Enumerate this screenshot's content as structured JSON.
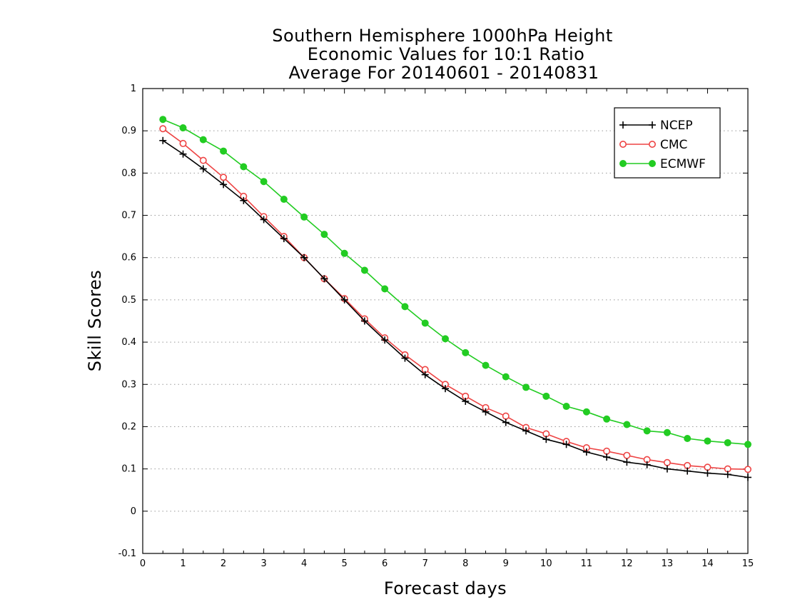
{
  "chart_data": {
    "type": "line",
    "title": [
      "Southern Hemisphere 1000hPa Height",
      "Economic Values for 10:1 Ratio",
      "Average For 20140601 - 20140831"
    ],
    "xlabel": "Forecast days",
    "ylabel": "Skill Scores",
    "xlim": [
      0,
      15
    ],
    "ylim": [
      -0.1,
      1
    ],
    "xticks": [
      0,
      1,
      2,
      3,
      4,
      5,
      6,
      7,
      8,
      9,
      10,
      11,
      12,
      13,
      14,
      15
    ],
    "yticks": [
      -0.1,
      0,
      0.1,
      0.2,
      0.3,
      0.4,
      0.5,
      0.6,
      0.7,
      0.8,
      0.9,
      1
    ],
    "ytick_labels": [
      "-0.1",
      "0",
      "0.1",
      "0.2",
      "0.3",
      "0.4",
      "0.5",
      "0.6",
      "0.7",
      "0.8",
      "0.9",
      "1"
    ],
    "grid": "horizontal dotted",
    "legend_position": "top-right",
    "x": [
      0.5,
      1,
      1.5,
      2,
      2.5,
      3,
      3.5,
      4,
      4.5,
      5,
      5.5,
      6,
      6.5,
      7,
      7.5,
      8,
      8.5,
      9,
      9.5,
      10,
      10.5,
      11,
      11.5,
      12,
      12.5,
      13,
      13.5,
      14,
      14.5,
      15
    ],
    "series": [
      {
        "name": "NCEP",
        "color": "#000000",
        "marker": "plus",
        "values": [
          0.877,
          0.845,
          0.81,
          0.773,
          0.735,
          0.69,
          0.645,
          0.6,
          0.55,
          0.5,
          0.45,
          0.405,
          0.362,
          0.323,
          0.29,
          0.26,
          0.235,
          0.21,
          0.19,
          0.17,
          0.158,
          0.14,
          0.128,
          0.116,
          0.11,
          0.1,
          0.095,
          0.09,
          0.087,
          0.08
        ]
      },
      {
        "name": "CMC",
        "color": "#ee4444",
        "marker": "open-circle",
        "values": [
          0.905,
          0.87,
          0.83,
          0.79,
          0.745,
          0.697,
          0.65,
          0.6,
          0.55,
          0.503,
          0.455,
          0.41,
          0.37,
          0.335,
          0.3,
          0.272,
          0.245,
          0.225,
          0.198,
          0.183,
          0.165,
          0.15,
          0.142,
          0.132,
          0.122,
          0.115,
          0.108,
          0.104,
          0.1,
          0.099
        ]
      },
      {
        "name": "ECMWF",
        "color": "#22cc22",
        "marker": "filled-circle",
        "values": [
          0.927,
          0.907,
          0.879,
          0.852,
          0.815,
          0.78,
          0.738,
          0.696,
          0.655,
          0.61,
          0.57,
          0.526,
          0.484,
          0.445,
          0.408,
          0.375,
          0.345,
          0.318,
          0.293,
          0.272,
          0.248,
          0.235,
          0.218,
          0.205,
          0.19,
          0.186,
          0.172,
          0.166,
          0.162,
          0.158
        ]
      }
    ]
  }
}
